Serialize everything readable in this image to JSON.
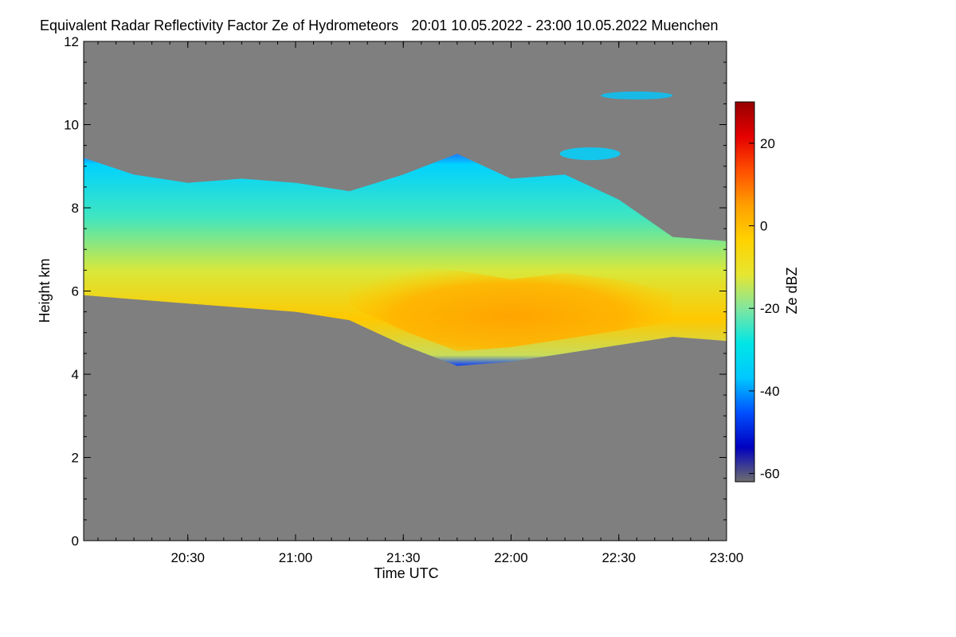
{
  "chart_data": {
    "type": "heatmap",
    "title": "Equivalent Radar Reflectivity Factor Ze of Hydrometeors",
    "subtitle": "20:01 10.05.2022 - 23:00 10.05.2022 Muenchen",
    "xlabel": "Time UTC",
    "ylabel": "Height km",
    "colorbar_label": "Ze dBZ",
    "x_ticks": [
      "20:30",
      "21:00",
      "21:30",
      "22:00",
      "22:30",
      "23:00"
    ],
    "y_ticks": [
      "0",
      "2",
      "4",
      "6",
      "8",
      "10",
      "12"
    ],
    "colorbar_ticks": [
      "20",
      "0",
      "-20",
      "-40",
      "-60"
    ],
    "xlim": [
      "20:01",
      "23:00"
    ],
    "ylim": [
      0,
      12
    ],
    "clim": [
      -62,
      30
    ],
    "background_color": "#7f7f7f",
    "colormap": [
      "#6e6e6e",
      "#0000c0",
      "#0050ff",
      "#00c8ff",
      "#00e6e6",
      "#7fe6a0",
      "#e6e632",
      "#ffd200",
      "#ffa000",
      "#ff5000",
      "#e60000",
      "#960000"
    ],
    "cloud_layer": {
      "time": [
        "20:01",
        "20:15",
        "20:30",
        "20:45",
        "21:00",
        "21:15",
        "21:30",
        "21:45",
        "22:00",
        "22:15",
        "22:30",
        "22:45",
        "23:00"
      ],
      "top_km": [
        9.2,
        8.8,
        8.6,
        8.7,
        8.6,
        8.4,
        8.8,
        9.3,
        8.7,
        8.8,
        8.2,
        7.3,
        7.2
      ],
      "base_km": [
        5.9,
        5.8,
        5.7,
        5.6,
        5.5,
        5.3,
        4.7,
        4.2,
        4.3,
        4.5,
        4.7,
        4.9,
        4.8
      ],
      "core_max_dBZ": 5
    }
  }
}
